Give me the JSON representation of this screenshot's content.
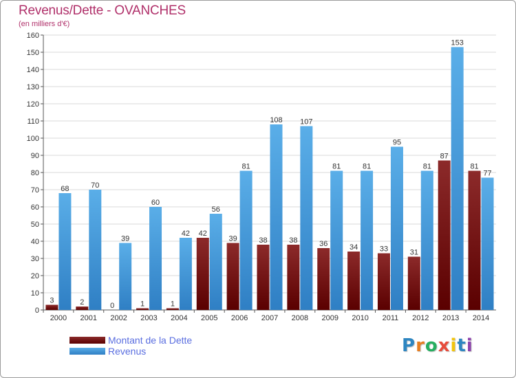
{
  "colors": {
    "title": "#b0306a",
    "dette_light": "#8c2a2a",
    "dette_dark": "#5a0000",
    "revenus_light": "#5aaee8",
    "revenus_dark": "#2f7fc4",
    "grid": "#d8d8d8",
    "legend_text": "#5a6ee0"
  },
  "header": {
    "title": "Revenus/Dette - OVANCHES",
    "subtitle": "(en milliers d'€)"
  },
  "legend": {
    "items": [
      {
        "label": "Montant de la Dette",
        "series": "dette"
      },
      {
        "label": "Revenus",
        "series": "revenus"
      }
    ]
  },
  "logo": {
    "text": "Proxiti",
    "letter_colors": [
      "#2e86c1",
      "#e67e22",
      "#27ae60",
      "#e74c3c",
      "#f1c40f",
      "#2e86c1",
      "#8e44ad"
    ]
  },
  "chart_data": {
    "type": "bar",
    "title": "Revenus/Dette - OVANCHES",
    "ylabel": "(en milliers d'€)",
    "xlabel": "",
    "ylim": [
      0,
      160
    ],
    "yticks": [
      0,
      10,
      20,
      30,
      40,
      50,
      60,
      70,
      80,
      90,
      100,
      110,
      120,
      130,
      140,
      150,
      160
    ],
    "grid": true,
    "legend_position": "bottom-left",
    "categories": [
      "2000",
      "2001",
      "2002",
      "2003",
      "2004",
      "2005",
      "2006",
      "2007",
      "2008",
      "2009",
      "2010",
      "2011",
      "2012",
      "2013",
      "2014"
    ],
    "series": [
      {
        "name": "Montant de la Dette",
        "key": "dette",
        "values": [
          3,
          2,
          0,
          1,
          1,
          42,
          39,
          38,
          38,
          36,
          34,
          33,
          31,
          87,
          81
        ]
      },
      {
        "name": "Revenus",
        "key": "revenus",
        "values": [
          68,
          70,
          39,
          60,
          42,
          56,
          81,
          108,
          107,
          81,
          81,
          95,
          81,
          153,
          77
        ]
      }
    ]
  }
}
